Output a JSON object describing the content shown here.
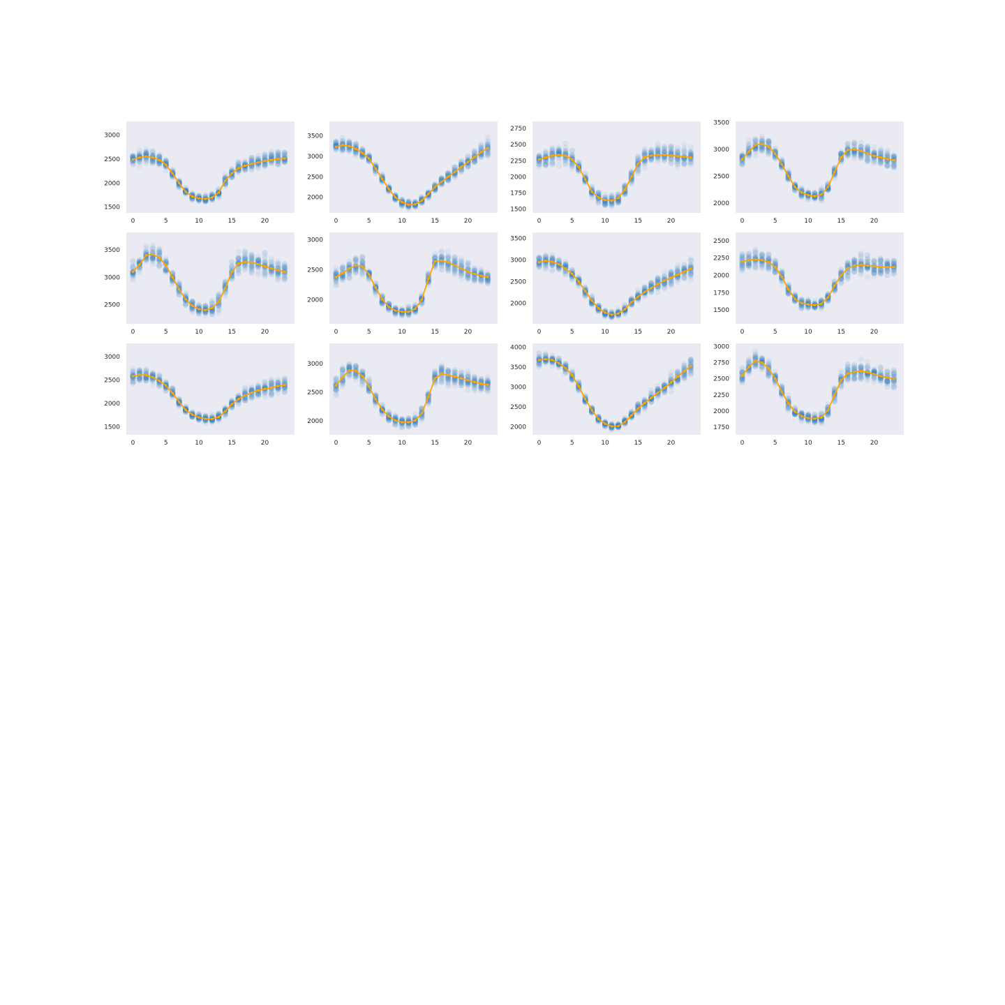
{
  "chart_data": [
    {
      "type": "scatter",
      "grid": false,
      "x": [
        0,
        1,
        2,
        3,
        4,
        5,
        6,
        7,
        8,
        9,
        10,
        11,
        12,
        13,
        14,
        15,
        16,
        17,
        18,
        19,
        20,
        21,
        22,
        23
      ],
      "xlim": [
        -1,
        24.5
      ],
      "ylim": [
        1380,
        3280
      ],
      "xticks": [
        0,
        5,
        10,
        15,
        20
      ],
      "xtick_labels": [
        "0",
        "5",
        "10",
        "15",
        "20"
      ],
      "yticks": [
        1500,
        2000,
        2500,
        3000
      ],
      "ytick_labels": [
        "1500",
        "2000",
        "2500",
        "3000"
      ],
      "trend": [
        2490,
        2530,
        2550,
        2530,
        2480,
        2380,
        2200,
        2000,
        1820,
        1720,
        1680,
        1670,
        1700,
        1800,
        2050,
        2200,
        2310,
        2360,
        2400,
        2430,
        2460,
        2480,
        2500,
        2510
      ],
      "spread": [
        170,
        170,
        170,
        160,
        150,
        130,
        110,
        100,
        90,
        90,
        80,
        80,
        90,
        110,
        130,
        140,
        150,
        150,
        160,
        170,
        180,
        190,
        200,
        210
      ]
    },
    {
      "type": "scatter",
      "grid": false,
      "x": [
        0,
        1,
        2,
        3,
        4,
        5,
        6,
        7,
        8,
        9,
        10,
        11,
        12,
        13,
        14,
        15,
        16,
        17,
        18,
        19,
        20,
        21,
        22,
        23
      ],
      "xlim": [
        -1,
        24.5
      ],
      "ylim": [
        1620,
        3850
      ],
      "xticks": [
        0,
        5,
        10,
        15,
        20
      ],
      "xtick_labels": [
        "0",
        "5",
        "10",
        "15",
        "20"
      ],
      "yticks": [
        2000,
        2500,
        3000,
        3500
      ],
      "ytick_labels": [
        "2000",
        "2500",
        "3000",
        "3500"
      ],
      "trend": [
        3230,
        3270,
        3250,
        3180,
        3080,
        2950,
        2700,
        2450,
        2200,
        2000,
        1880,
        1820,
        1830,
        1920,
        2080,
        2250,
        2380,
        2500,
        2620,
        2740,
        2860,
        2980,
        3100,
        3200
      ],
      "spread": [
        190,
        190,
        190,
        180,
        170,
        150,
        130,
        120,
        110,
        100,
        100,
        100,
        100,
        110,
        130,
        140,
        160,
        170,
        180,
        200,
        210,
        230,
        240,
        260
      ]
    },
    {
      "type": "scatter",
      "grid": false,
      "x": [
        0,
        1,
        2,
        3,
        4,
        5,
        6,
        7,
        8,
        9,
        10,
        11,
        12,
        13,
        14,
        15,
        16,
        17,
        18,
        19,
        20,
        21,
        22,
        23
      ],
      "xlim": [
        -1,
        24.5
      ],
      "ylim": [
        1440,
        2860
      ],
      "xticks": [
        0,
        5,
        10,
        15,
        20
      ],
      "xtick_labels": [
        "0",
        "5",
        "10",
        "15",
        "20"
      ],
      "yticks": [
        1500,
        1750,
        2000,
        2250,
        2500,
        2750
      ],
      "ytick_labels": [
        "1500",
        "1750",
        "2000",
        "2250",
        "2500",
        "2750"
      ],
      "trend": [
        2270,
        2300,
        2330,
        2340,
        2330,
        2270,
        2150,
        1960,
        1770,
        1680,
        1640,
        1630,
        1670,
        1800,
        2000,
        2200,
        2300,
        2330,
        2340,
        2340,
        2330,
        2320,
        2310,
        2300
      ],
      "spread": [
        170,
        170,
        170,
        170,
        170,
        150,
        130,
        120,
        110,
        110,
        100,
        100,
        110,
        120,
        140,
        160,
        170,
        180,
        180,
        180,
        180,
        180,
        180,
        190
      ]
    },
    {
      "type": "scatter",
      "grid": false,
      "x": [
        0,
        1,
        2,
        3,
        4,
        5,
        6,
        7,
        8,
        9,
        10,
        11,
        12,
        13,
        14,
        15,
        16,
        17,
        18,
        19,
        20,
        21,
        22,
        23
      ],
      "xlim": [
        -1,
        24.5
      ],
      "ylim": [
        1820,
        3520
      ],
      "xticks": [
        0,
        5,
        10,
        15,
        20
      ],
      "xtick_labels": [
        "0",
        "5",
        "10",
        "15",
        "20"
      ],
      "yticks": [
        2000,
        2500,
        3000,
        3500
      ],
      "ytick_labels": [
        "2000",
        "2500",
        "3000",
        "3500"
      ],
      "trend": [
        2820,
        2960,
        3080,
        3100,
        3050,
        2920,
        2720,
        2500,
        2300,
        2200,
        2150,
        2130,
        2160,
        2300,
        2580,
        2850,
        2990,
        3000,
        2970,
        2920,
        2880,
        2850,
        2820,
        2800
      ],
      "spread": [
        190,
        190,
        190,
        180,
        170,
        150,
        140,
        130,
        120,
        110,
        110,
        110,
        120,
        130,
        150,
        170,
        190,
        200,
        200,
        200,
        200,
        200,
        200,
        200
      ]
    },
    {
      "type": "scatter",
      "grid": false,
      "x": [
        0,
        1,
        2,
        3,
        4,
        5,
        6,
        7,
        8,
        9,
        10,
        11,
        12,
        13,
        14,
        15,
        16,
        17,
        18,
        19,
        20,
        21,
        22,
        23
      ],
      "xlim": [
        -1,
        24.5
      ],
      "ylim": [
        2150,
        3820
      ],
      "xticks": [
        0,
        5,
        10,
        15,
        20
      ],
      "xtick_labels": [
        "0",
        "5",
        "10",
        "15",
        "20"
      ],
      "yticks": [
        2500,
        3000,
        3500
      ],
      "ytick_labels": [
        "2500",
        "3000",
        "3500"
      ],
      "trend": [
        3100,
        3230,
        3400,
        3420,
        3360,
        3220,
        3000,
        2780,
        2600,
        2480,
        2420,
        2400,
        2440,
        2550,
        2800,
        3100,
        3250,
        3280,
        3270,
        3240,
        3200,
        3160,
        3130,
        3100
      ],
      "spread": [
        200,
        210,
        220,
        220,
        210,
        190,
        170,
        160,
        150,
        140,
        140,
        140,
        150,
        170,
        200,
        220,
        230,
        230,
        230,
        220,
        220,
        210,
        210,
        200
      ]
    },
    {
      "type": "scatter",
      "grid": false,
      "x": [
        0,
        1,
        2,
        3,
        4,
        5,
        6,
        7,
        8,
        9,
        10,
        11,
        12,
        13,
        14,
        15,
        16,
        17,
        18,
        19,
        20,
        21,
        22,
        23
      ],
      "xlim": [
        -1,
        24.5
      ],
      "ylim": [
        1600,
        3120
      ],
      "xticks": [
        0,
        5,
        10,
        15,
        20
      ],
      "xtick_labels": [
        "0",
        "5",
        "10",
        "15",
        "20"
      ],
      "yticks": [
        2000,
        2500,
        3000
      ],
      "ytick_labels": [
        "2000",
        "2500",
        "3000"
      ],
      "trend": [
        2380,
        2440,
        2520,
        2570,
        2550,
        2420,
        2200,
        2010,
        1880,
        1820,
        1800,
        1800,
        1850,
        2000,
        2350,
        2640,
        2650,
        2620,
        2570,
        2520,
        2470,
        2430,
        2400,
        2380
      ],
      "spread": [
        180,
        180,
        180,
        170,
        160,
        140,
        120,
        110,
        100,
        100,
        100,
        100,
        110,
        130,
        160,
        180,
        190,
        190,
        190,
        180,
        180,
        170,
        170,
        170
      ]
    },
    {
      "type": "scatter",
      "grid": false,
      "x": [
        0,
        1,
        2,
        3,
        4,
        5,
        6,
        7,
        8,
        9,
        10,
        11,
        12,
        13,
        14,
        15,
        16,
        17,
        18,
        19,
        20,
        21,
        22,
        23
      ],
      "xlim": [
        -1,
        24.5
      ],
      "ylim": [
        1520,
        3640
      ],
      "xticks": [
        0,
        5,
        10,
        15,
        20
      ],
      "xtick_labels": [
        "0",
        "5",
        "10",
        "15",
        "20"
      ],
      "yticks": [
        2000,
        2500,
        3000,
        3500
      ],
      "ytick_labels": [
        "2000",
        "2500",
        "3000",
        "3500"
      ],
      "trend": [
        2950,
        2980,
        2960,
        2900,
        2800,
        2680,
        2500,
        2280,
        2060,
        1880,
        1780,
        1730,
        1760,
        1860,
        2020,
        2150,
        2260,
        2350,
        2440,
        2520,
        2590,
        2660,
        2730,
        2800
      ],
      "spread": [
        220,
        220,
        210,
        200,
        190,
        170,
        150,
        130,
        120,
        110,
        100,
        100,
        110,
        120,
        140,
        150,
        170,
        180,
        190,
        210,
        220,
        240,
        250,
        270
      ]
    },
    {
      "type": "scatter",
      "grid": false,
      "x": [
        0,
        1,
        2,
        3,
        4,
        5,
        6,
        7,
        8,
        9,
        10,
        11,
        12,
        13,
        14,
        15,
        16,
        17,
        18,
        19,
        20,
        21,
        22,
        23
      ],
      "xlim": [
        -1,
        24.5
      ],
      "ylim": [
        1300,
        2620
      ],
      "xticks": [
        0,
        5,
        10,
        15,
        20
      ],
      "xtick_labels": [
        "0",
        "5",
        "10",
        "15",
        "20"
      ],
      "yticks": [
        1500,
        1750,
        2000,
        2250,
        2500
      ],
      "ytick_labels": [
        "1500",
        "1750",
        "2000",
        "2250",
        "2500"
      ],
      "trend": [
        2200,
        2220,
        2230,
        2220,
        2190,
        2120,
        1980,
        1800,
        1660,
        1600,
        1580,
        1570,
        1590,
        1680,
        1850,
        2000,
        2100,
        2140,
        2150,
        2140,
        2130,
        2120,
        2120,
        2120
      ],
      "spread": [
        160,
        160,
        160,
        150,
        150,
        130,
        110,
        100,
        90,
        90,
        80,
        80,
        90,
        100,
        120,
        140,
        150,
        160,
        160,
        160,
        160,
        160,
        160,
        170
      ]
    },
    {
      "type": "scatter",
      "grid": false,
      "x": [
        0,
        1,
        2,
        3,
        4,
        5,
        6,
        7,
        8,
        9,
        10,
        11,
        12,
        13,
        14,
        15,
        16,
        17,
        18,
        19,
        20,
        21,
        22,
        23
      ],
      "xlim": [
        -1,
        24.5
      ],
      "ylim": [
        1330,
        3280
      ],
      "xticks": [
        0,
        5,
        10,
        15,
        20
      ],
      "xtick_labels": [
        "0",
        "5",
        "10",
        "15",
        "20"
      ],
      "yticks": [
        1500,
        2000,
        2500,
        3000
      ],
      "ytick_labels": [
        "1500",
        "2000",
        "2500",
        "3000"
      ],
      "trend": [
        2580,
        2610,
        2600,
        2560,
        2480,
        2380,
        2220,
        2030,
        1860,
        1760,
        1700,
        1670,
        1670,
        1710,
        1830,
        1980,
        2090,
        2170,
        2230,
        2280,
        2310,
        2340,
        2370,
        2390
      ],
      "spread": [
        200,
        200,
        190,
        180,
        170,
        150,
        130,
        110,
        100,
        90,
        90,
        90,
        90,
        100,
        120,
        140,
        150,
        160,
        170,
        180,
        190,
        200,
        210,
        220
      ]
    },
    {
      "type": "scatter",
      "grid": false,
      "x": [
        0,
        1,
        2,
        3,
        4,
        5,
        6,
        7,
        8,
        9,
        10,
        11,
        12,
        13,
        14,
        15,
        16,
        17,
        18,
        19,
        20,
        21,
        22,
        23
      ],
      "xlim": [
        -1,
        24.5
      ],
      "ylim": [
        1760,
        3350
      ],
      "xticks": [
        0,
        5,
        10,
        15,
        20
      ],
      "xtick_labels": [
        "0",
        "5",
        "10",
        "15",
        "20"
      ],
      "yticks": [
        2000,
        2500,
        3000
      ],
      "ytick_labels": [
        "2000",
        "2500",
        "3000"
      ],
      "trend": [
        2620,
        2760,
        2880,
        2870,
        2780,
        2600,
        2380,
        2200,
        2080,
        2010,
        1980,
        1980,
        2010,
        2130,
        2420,
        2740,
        2820,
        2800,
        2770,
        2740,
        2710,
        2680,
        2650,
        2630
      ],
      "spread": [
        190,
        190,
        190,
        180,
        170,
        150,
        140,
        130,
        120,
        120,
        110,
        110,
        120,
        130,
        160,
        190,
        200,
        200,
        200,
        190,
        190,
        190,
        190,
        190
      ]
    },
    {
      "type": "scatter",
      "grid": false,
      "x": [
        0,
        1,
        2,
        3,
        4,
        5,
        6,
        7,
        8,
        9,
        10,
        11,
        12,
        13,
        14,
        15,
        16,
        17,
        18,
        19,
        20,
        21,
        22,
        23
      ],
      "xlim": [
        -1,
        24.5
      ],
      "ylim": [
        1800,
        4100
      ],
      "xticks": [
        0,
        5,
        10,
        15,
        20
      ],
      "xtick_labels": [
        "0",
        "5",
        "10",
        "15",
        "20"
      ],
      "yticks": [
        2000,
        2500,
        3000,
        3500,
        4000
      ],
      "ytick_labels": [
        "2000",
        "2500",
        "3000",
        "3500",
        "4000"
      ],
      "trend": [
        3680,
        3700,
        3680,
        3600,
        3480,
        3300,
        3020,
        2700,
        2420,
        2200,
        2080,
        2010,
        2020,
        2120,
        2290,
        2460,
        2600,
        2730,
        2860,
        2980,
        3120,
        3260,
        3400,
        3530
      ],
      "spread": [
        180,
        180,
        180,
        170,
        160,
        150,
        140,
        120,
        110,
        100,
        90,
        90,
        100,
        110,
        130,
        150,
        170,
        180,
        200,
        210,
        230,
        240,
        250,
        260
      ]
    },
    {
      "type": "scatter",
      "grid": false,
      "x": [
        0,
        1,
        2,
        3,
        4,
        5,
        6,
        7,
        8,
        9,
        10,
        11,
        12,
        13,
        14,
        15,
        16,
        17,
        18,
        19,
        20,
        21,
        22,
        23
      ],
      "xlim": [
        -1,
        24.5
      ],
      "ylim": [
        1630,
        3050
      ],
      "xticks": [
        0,
        5,
        10,
        15,
        20
      ],
      "xtick_labels": [
        "0",
        "5",
        "10",
        "15",
        "20"
      ],
      "yticks": [
        1750,
        2000,
        2250,
        2500,
        2750,
        3000
      ],
      "ytick_labels": [
        "1750",
        "2000",
        "2250",
        "2500",
        "2750",
        "3000"
      ],
      "trend": [
        2550,
        2680,
        2780,
        2750,
        2660,
        2500,
        2300,
        2120,
        1990,
        1920,
        1890,
        1880,
        1900,
        2010,
        2250,
        2480,
        2580,
        2610,
        2620,
        2600,
        2570,
        2540,
        2520,
        2500
      ],
      "spread": [
        180,
        180,
        180,
        170,
        160,
        150,
        130,
        120,
        110,
        100,
        100,
        100,
        110,
        120,
        150,
        170,
        180,
        180,
        180,
        180,
        180,
        180,
        180,
        180
      ]
    }
  ],
  "colors": {
    "axes_background": "#eaeaf2",
    "points": "#1f77b4",
    "trend_line": "#ffa500",
    "tick_text": "#262626"
  }
}
